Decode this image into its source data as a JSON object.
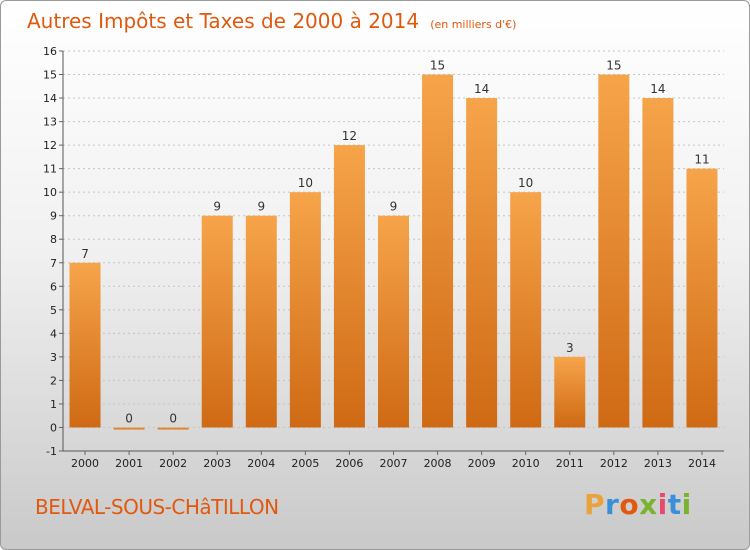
{
  "chart_data": {
    "type": "bar",
    "title": "Autres Impôts et Taxes de 2000 à 2014",
    "subtitle": "(en milliers d'€)",
    "categories": [
      "2000",
      "2001",
      "2002",
      "2003",
      "2004",
      "2005",
      "2006",
      "2007",
      "2008",
      "2009",
      "2010",
      "2011",
      "2012",
      "2013",
      "2014"
    ],
    "values": [
      7,
      0,
      0,
      9,
      9,
      10,
      12,
      9,
      15,
      14,
      10,
      3,
      15,
      14,
      11
    ],
    "ylim": [
      -1,
      16
    ],
    "yticks": [
      -1,
      0,
      1,
      2,
      3,
      4,
      5,
      6,
      7,
      8,
      9,
      10,
      11,
      12,
      13,
      14,
      15,
      16
    ],
    "grid": true,
    "legend": "none"
  },
  "footer": {
    "commune": "BELVAL-SOUS-CHâTILLON",
    "logo_letters": [
      "P",
      "r",
      "o",
      "x",
      "i",
      "t",
      "i"
    ],
    "logo_colors": [
      "#e8a33c",
      "#3a8fd6",
      "#e0590f",
      "#7ab32e",
      "#e84a6f",
      "#3a8fd6",
      "#7ab32e"
    ]
  },
  "colors": {
    "bar_light": "#f6a44a",
    "bar_dark": "#cf6a14",
    "accent": "#e0590f"
  }
}
